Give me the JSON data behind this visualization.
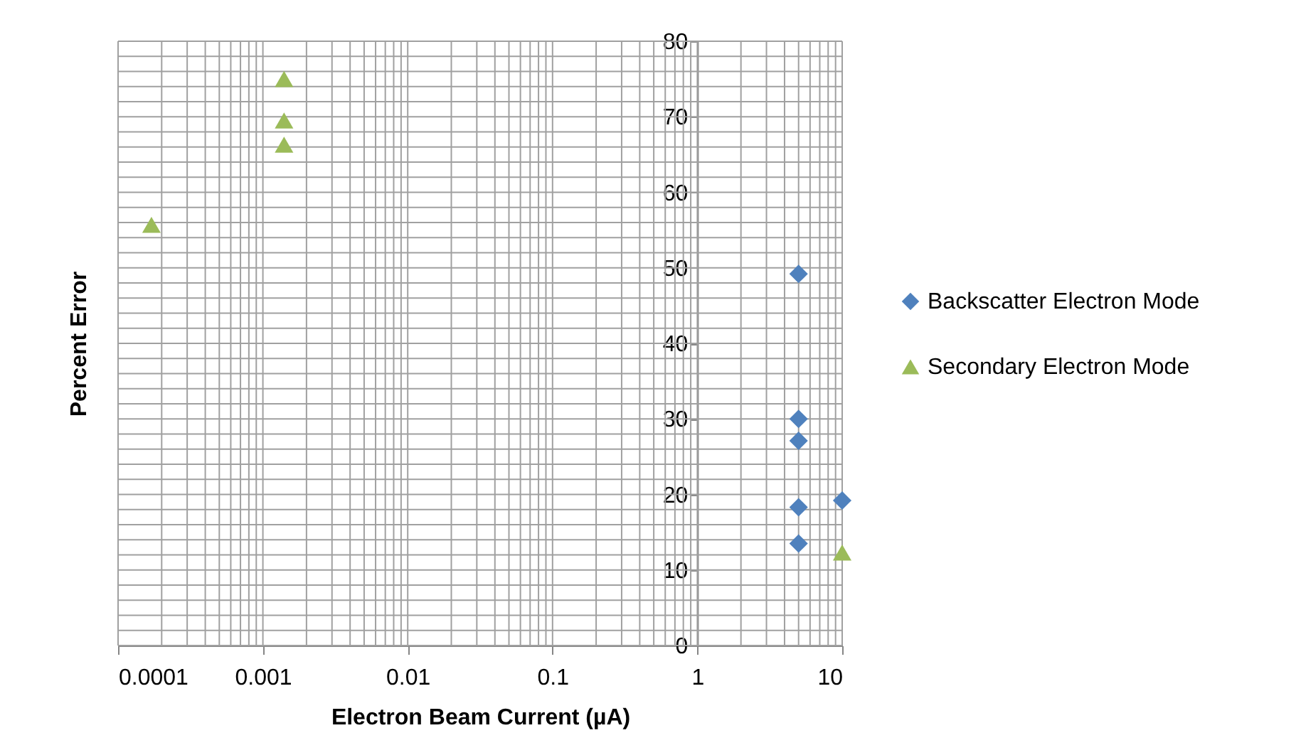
{
  "chart_data": {
    "type": "scatter",
    "xlabel": "Electron Beam Current (µA)",
    "ylabel": "Percent Error",
    "log": "x",
    "grid": true,
    "legend": "right",
    "xlim": [
      0.0001,
      10
    ],
    "ylim": [
      0,
      80
    ],
    "xticks": [
      0.0001,
      {
        "value": 0.0002,
        "label": null
      },
      {
        "value": 0.0003,
        "label": null
      },
      {
        "value": 0.0004,
        "label": null
      },
      {
        "value": 0.0005,
        "label": null
      },
      {
        "value": 0.0006,
        "label": null
      },
      {
        "value": 0.0007,
        "label": null
      },
      {
        "value": 0.0008,
        "label": null
      },
      {
        "value": 0.0009,
        "label": null
      },
      0.001,
      {
        "value": 0.002,
        "label": null
      },
      {
        "value": 0.003,
        "label": null
      },
      {
        "value": 0.004,
        "label": null
      },
      {
        "value": 0.005,
        "label": null
      },
      {
        "value": 0.006,
        "label": null
      },
      {
        "value": 0.007,
        "label": null
      },
      {
        "value": 0.008,
        "label": null
      },
      {
        "value": 0.009,
        "label": null
      },
      0.01,
      {
        "value": 0.02,
        "label": null
      },
      {
        "value": 0.03,
        "label": null
      },
      {
        "value": 0.04,
        "label": null
      },
      {
        "value": 0.05,
        "label": null
      },
      {
        "value": 0.06,
        "label": null
      },
      {
        "value": 0.07,
        "label": null
      },
      {
        "value": 0.08,
        "label": null
      },
      {
        "value": 0.09,
        "label": null
      },
      0.1,
      {
        "value": 0.2,
        "label": null
      },
      {
        "value": 0.3,
        "label": null
      },
      {
        "value": 0.4,
        "label": null
      },
      {
        "value": 0.5,
        "label": null
      },
      {
        "value": 0.6,
        "label": null
      },
      {
        "value": 0.7,
        "label": null
      },
      {
        "value": 0.8,
        "label": null
      },
      {
        "value": 0.9,
        "label": null
      },
      1,
      {
        "value": 2,
        "label": null
      },
      {
        "value": 3,
        "label": null
      },
      {
        "value": 4,
        "label": null
      },
      {
        "value": 5,
        "label": null
      },
      {
        "value": 6,
        "label": null
      },
      {
        "value": 7,
        "label": null
      },
      {
        "value": 8,
        "label": null
      },
      {
        "value": 9,
        "label": null
      },
      10
    ],
    "yticks": [
      0,
      {
        "value": 2,
        "label": null
      },
      {
        "value": 4,
        "label": null
      },
      {
        "value": 6,
        "label": null
      },
      {
        "value": 8,
        "label": null
      },
      10,
      {
        "value": 12,
        "label": null
      },
      {
        "value": 14,
        "label": null
      },
      {
        "value": 16,
        "label": null
      },
      {
        "value": 18,
        "label": null
      },
      20,
      {
        "value": 22,
        "label": null
      },
      {
        "value": 24,
        "label": null
      },
      {
        "value": 26,
        "label": null
      },
      {
        "value": 28,
        "label": null
      },
      30,
      {
        "value": 32,
        "label": null
      },
      {
        "value": 34,
        "label": null
      },
      {
        "value": 36,
        "label": null
      },
      {
        "value": 38,
        "label": null
      },
      40,
      {
        "value": 42,
        "label": null
      },
      {
        "value": 44,
        "label": null
      },
      {
        "value": 46,
        "label": null
      },
      {
        "value": 48,
        "label": null
      },
      50,
      {
        "value": 52,
        "label": null
      },
      {
        "value": 54,
        "label": null
      },
      {
        "value": 56,
        "label": null
      },
      {
        "value": 58,
        "label": null
      },
      60,
      {
        "value": 62,
        "label": null
      },
      {
        "value": 64,
        "label": null
      },
      {
        "value": 66,
        "label": null
      },
      {
        "value": 68,
        "label": null
      },
      70,
      {
        "value": 72,
        "label": null
      },
      {
        "value": 74,
        "label": null
      },
      {
        "value": 76,
        "label": null
      },
      {
        "value": 78,
        "label": null
      },
      80
    ],
    "series": [
      {
        "name": "Backscatter Electron Mode",
        "color": "#4f81bd",
        "marker": "diamond",
        "x": [
          5,
          5,
          5,
          5,
          5,
          10
        ],
        "values": [
          49.2,
          30,
          27.1,
          18.3,
          13.5,
          19.2
        ]
      },
      {
        "name": "Secondary Electron Mode",
        "color": "#9bbb59",
        "marker": "triangle",
        "x": [
          0.00017,
          0.0014,
          0.0014,
          0.0014,
          10
        ],
        "values": [
          55.7,
          75,
          69.5,
          66.3,
          12.3
        ]
      }
    ]
  }
}
